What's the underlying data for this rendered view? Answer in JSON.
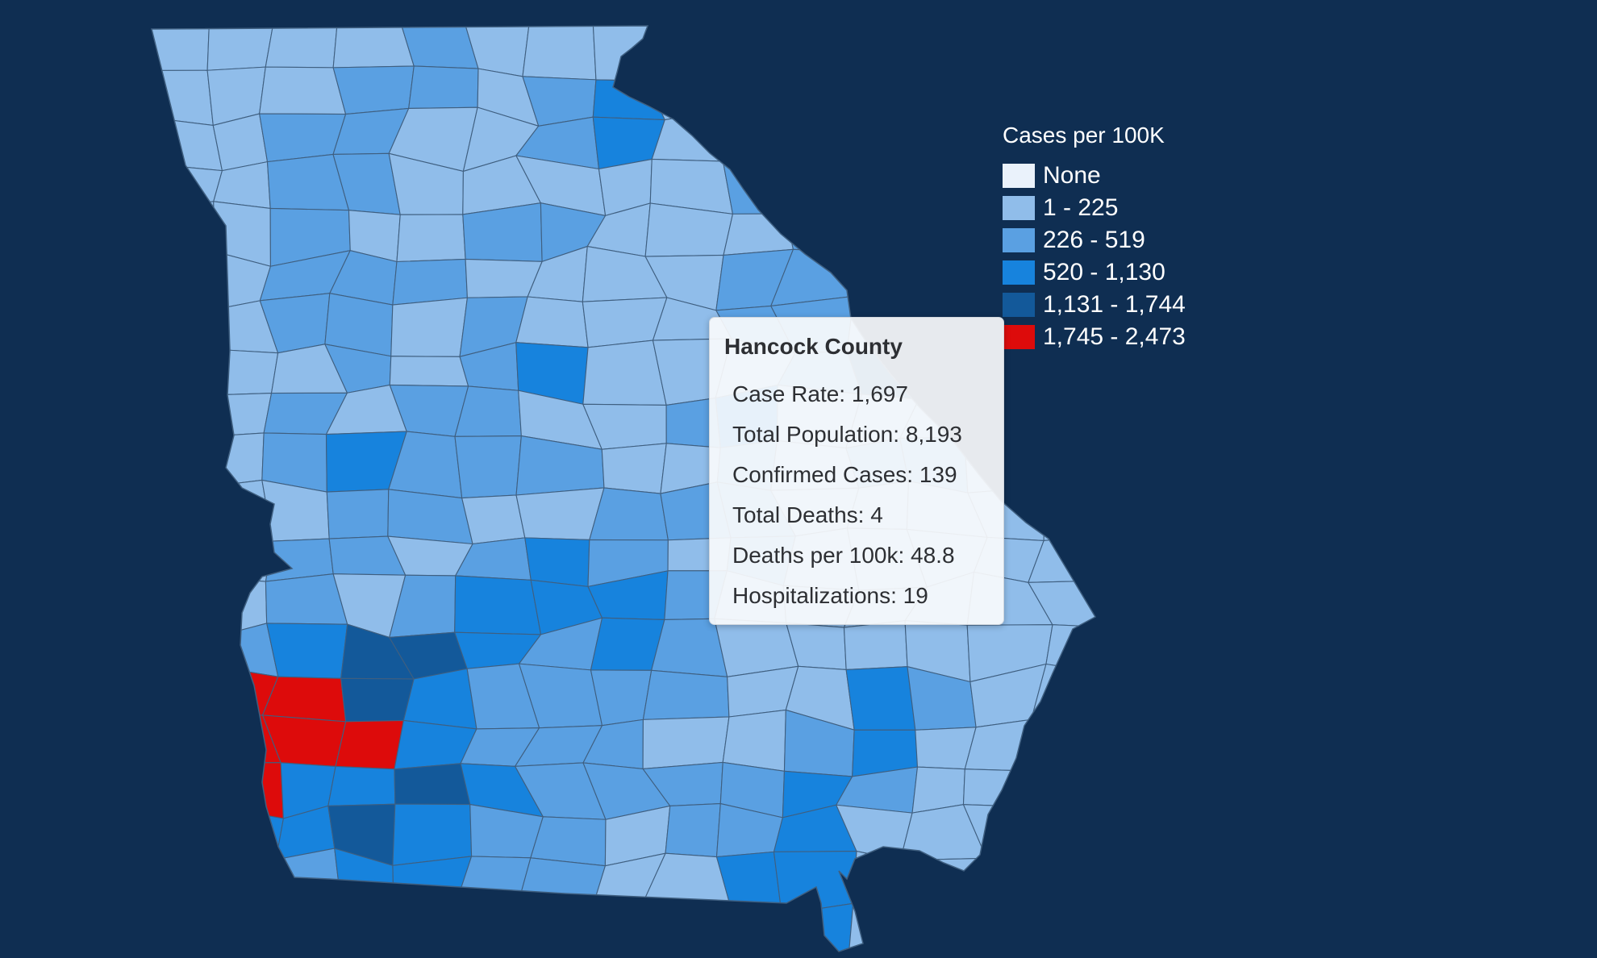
{
  "legend": {
    "title": "Cases per 100K",
    "items": [
      {
        "label": "None",
        "color": "#eaf2fb"
      },
      {
        "label": "1 - 225",
        "color": "#90bdea"
      },
      {
        "label": "226 - 519",
        "color": "#5aa0e2"
      },
      {
        "label": "520 - 1,130",
        "color": "#1783dd"
      },
      {
        "label": "1,131 - 1,744",
        "color": "#13599a"
      },
      {
        "label": "1,745 - 2,473",
        "color": "#dd0b0b"
      }
    ]
  },
  "tooltip": {
    "county": "Hancock County",
    "rows": [
      {
        "label": "Case Rate",
        "value": "1,697"
      },
      {
        "label": "Total Population",
        "value": "8,193"
      },
      {
        "label": "Confirmed Cases",
        "value": "139"
      },
      {
        "label": "Total Deaths",
        "value": "4"
      },
      {
        "label": "Deaths per 100k",
        "value": "48.8"
      },
      {
        "label": "Hospitalizations",
        "value": "19"
      }
    ],
    "text": {
      "r0": "Case Rate: 1,697",
      "r1": "Total Population: 8,193",
      "r2": "Confirmed Cases: 139",
      "r3": "Total Deaths: 4",
      "r4": "Deaths per 100k: 48.8",
      "r5": "Hospitalizations: 19"
    }
  },
  "colors": {
    "background": "#0f2e52",
    "county_border": "#3f5f80"
  },
  "map": {
    "region": "Georgia",
    "unit": "county"
  }
}
